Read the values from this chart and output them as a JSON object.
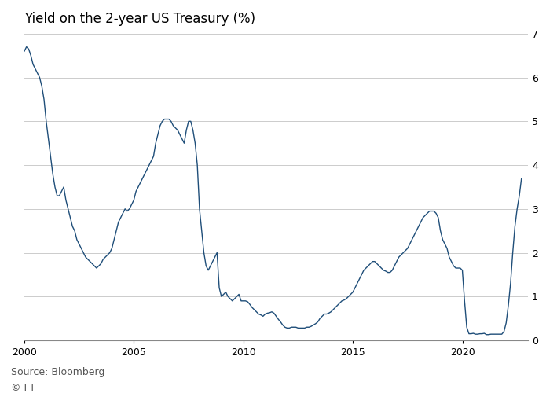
{
  "title": "Yield on the 2-year US Treasury (%)",
  "source": "Source: Bloomberg",
  "footer": "© FT",
  "line_color": "#1f4e79",
  "background_color": "#ffffff",
  "grid_color": "#cccccc",
  "ylim": [
    0,
    7
  ],
  "yticks": [
    0,
    1,
    2,
    3,
    4,
    5,
    6,
    7
  ],
  "xticks": [
    2000,
    2005,
    2010,
    2015,
    2020
  ],
  "title_fontsize": 12,
  "source_fontsize": 9,
  "data": {
    "dates": [
      2000.0,
      2000.1,
      2000.2,
      2000.3,
      2000.4,
      2000.5,
      2000.6,
      2000.7,
      2000.8,
      2000.9,
      2001.0,
      2001.1,
      2001.2,
      2001.3,
      2001.4,
      2001.5,
      2001.6,
      2001.7,
      2001.8,
      2001.9,
      2002.0,
      2002.1,
      2002.2,
      2002.3,
      2002.4,
      2002.5,
      2002.6,
      2002.7,
      2002.8,
      2002.9,
      2003.0,
      2003.1,
      2003.2,
      2003.3,
      2003.4,
      2003.5,
      2003.6,
      2003.7,
      2003.8,
      2003.9,
      2004.0,
      2004.1,
      2004.2,
      2004.3,
      2004.4,
      2004.5,
      2004.6,
      2004.7,
      2004.8,
      2004.9,
      2005.0,
      2005.1,
      2005.2,
      2005.3,
      2005.4,
      2005.5,
      2005.6,
      2005.7,
      2005.8,
      2005.9,
      2006.0,
      2006.1,
      2006.2,
      2006.3,
      2006.4,
      2006.5,
      2006.6,
      2006.7,
      2006.8,
      2006.9,
      2007.0,
      2007.1,
      2007.2,
      2007.3,
      2007.4,
      2007.5,
      2007.6,
      2007.7,
      2007.8,
      2007.9,
      2008.0,
      2008.1,
      2008.2,
      2008.3,
      2008.4,
      2008.5,
      2008.6,
      2008.7,
      2008.8,
      2008.9,
      2009.0,
      2009.1,
      2009.2,
      2009.3,
      2009.4,
      2009.5,
      2009.6,
      2009.7,
      2009.8,
      2009.9,
      2010.0,
      2010.1,
      2010.2,
      2010.3,
      2010.4,
      2010.5,
      2010.6,
      2010.7,
      2010.8,
      2010.9,
      2011.0,
      2011.1,
      2011.2,
      2011.3,
      2011.4,
      2011.5,
      2011.6,
      2011.7,
      2011.8,
      2011.9,
      2012.0,
      2012.1,
      2012.2,
      2012.3,
      2012.4,
      2012.5,
      2012.6,
      2012.7,
      2012.8,
      2012.9,
      2013.0,
      2013.1,
      2013.2,
      2013.3,
      2013.4,
      2013.5,
      2013.6,
      2013.7,
      2013.8,
      2013.9,
      2014.0,
      2014.1,
      2014.2,
      2014.3,
      2014.4,
      2014.5,
      2014.6,
      2014.7,
      2014.8,
      2014.9,
      2015.0,
      2015.1,
      2015.2,
      2015.3,
      2015.4,
      2015.5,
      2015.6,
      2015.7,
      2015.8,
      2015.9,
      2016.0,
      2016.1,
      2016.2,
      2016.3,
      2016.4,
      2016.5,
      2016.6,
      2016.7,
      2016.8,
      2016.9,
      2017.0,
      2017.1,
      2017.2,
      2017.3,
      2017.4,
      2017.5,
      2017.6,
      2017.7,
      2017.8,
      2017.9,
      2018.0,
      2018.1,
      2018.2,
      2018.3,
      2018.4,
      2018.5,
      2018.6,
      2018.7,
      2018.8,
      2018.9,
      2019.0,
      2019.1,
      2019.2,
      2019.3,
      2019.4,
      2019.5,
      2019.6,
      2019.7,
      2019.8,
      2019.9,
      2020.0,
      2020.1,
      2020.2,
      2020.3,
      2020.4,
      2020.5,
      2020.6,
      2020.7,
      2020.8,
      2020.9,
      2021.0,
      2021.1,
      2021.2,
      2021.3,
      2021.4,
      2021.5,
      2021.6,
      2021.7,
      2021.8,
      2021.9,
      2022.0,
      2022.1,
      2022.2,
      2022.3,
      2022.4,
      2022.5,
      2022.6,
      2022.7
    ],
    "yields": [
      6.6,
      6.7,
      6.65,
      6.5,
      6.3,
      6.2,
      6.1,
      6.0,
      5.8,
      5.5,
      5.0,
      4.6,
      4.2,
      3.8,
      3.5,
      3.3,
      3.3,
      3.4,
      3.5,
      3.2,
      3.0,
      2.8,
      2.6,
      2.5,
      2.3,
      2.2,
      2.1,
      2.0,
      1.9,
      1.85,
      1.8,
      1.75,
      1.7,
      1.65,
      1.7,
      1.75,
      1.85,
      1.9,
      1.95,
      2.0,
      2.1,
      2.3,
      2.5,
      2.7,
      2.8,
      2.9,
      3.0,
      2.95,
      3.0,
      3.1,
      3.2,
      3.4,
      3.5,
      3.6,
      3.7,
      3.8,
      3.9,
      4.0,
      4.1,
      4.2,
      4.5,
      4.7,
      4.9,
      5.0,
      5.05,
      5.05,
      5.05,
      5.0,
      4.9,
      4.85,
      4.8,
      4.7,
      4.6,
      4.5,
      4.8,
      5.0,
      5.0,
      4.8,
      4.5,
      4.0,
      3.0,
      2.5,
      2.0,
      1.7,
      1.6,
      1.7,
      1.8,
      1.9,
      2.0,
      1.2,
      1.0,
      1.05,
      1.1,
      1.0,
      0.95,
      0.9,
      0.95,
      1.0,
      1.05,
      0.9,
      0.9,
      0.9,
      0.88,
      0.82,
      0.75,
      0.7,
      0.65,
      0.6,
      0.58,
      0.55,
      0.6,
      0.62,
      0.63,
      0.65,
      0.62,
      0.55,
      0.48,
      0.42,
      0.35,
      0.3,
      0.28,
      0.28,
      0.3,
      0.3,
      0.3,
      0.28,
      0.28,
      0.28,
      0.28,
      0.3,
      0.3,
      0.32,
      0.35,
      0.38,
      0.42,
      0.5,
      0.55,
      0.6,
      0.6,
      0.62,
      0.65,
      0.7,
      0.75,
      0.8,
      0.85,
      0.9,
      0.92,
      0.95,
      1.0,
      1.05,
      1.1,
      1.2,
      1.3,
      1.4,
      1.5,
      1.6,
      1.65,
      1.7,
      1.75,
      1.8,
      1.8,
      1.75,
      1.7,
      1.65,
      1.6,
      1.58,
      1.55,
      1.55,
      1.6,
      1.7,
      1.8,
      1.9,
      1.95,
      2.0,
      2.05,
      2.1,
      2.2,
      2.3,
      2.4,
      2.5,
      2.6,
      2.7,
      2.8,
      2.85,
      2.9,
      2.95,
      2.95,
      2.95,
      2.9,
      2.8,
      2.5,
      2.3,
      2.2,
      2.1,
      1.9,
      1.8,
      1.7,
      1.65,
      1.65,
      1.65,
      1.6,
      0.9,
      0.3,
      0.15,
      0.15,
      0.16,
      0.14,
      0.14,
      0.15,
      0.15,
      0.16,
      0.13,
      0.13,
      0.14,
      0.14,
      0.14,
      0.14,
      0.14,
      0.14,
      0.2,
      0.4,
      0.8,
      1.3,
      2.0,
      2.6,
      3.0,
      3.3,
      3.7
    ]
  }
}
